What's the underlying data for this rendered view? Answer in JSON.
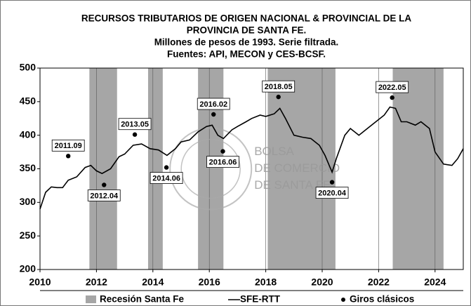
{
  "chart_data": {
    "type": "line",
    "title": [
      "RECURSOS TRIBUTARIOS DE ORIGEN NACIONAL & PROVINCIAL DE LA",
      "PROVINCIA DE SANTA FE."
    ],
    "subtitle": [
      "Millones de pesos de 1993. Serie filtrada.",
      "Fuentes: API, MECON y CES-BCSF."
    ],
    "watermark": [
      "BOLSA",
      "DE COMERCIO",
      "DE SANTA FE"
    ],
    "xlim": [
      2010,
      2025
    ],
    "ylim": [
      200,
      500
    ],
    "xticks": [
      2010,
      2012,
      2014,
      2016,
      2018,
      2020,
      2022,
      2024
    ],
    "yticks": [
      200,
      250,
      300,
      350,
      400,
      450,
      500
    ],
    "grid": true,
    "recessions": {
      "name": "Recesión Santa Fe",
      "color": "#a6a6a6",
      "ranges": [
        [
          2011.75,
          2012.73
        ],
        [
          2013.83,
          2014.35
        ],
        [
          2015.6,
          2016.5
        ],
        [
          2018.07,
          2020.47
        ],
        [
          2022.5,
          2024.3
        ]
      ]
    },
    "series": [
      {
        "name": "SFE-RTT",
        "color": "#000000",
        "x": [
          2010.0,
          2010.2,
          2010.4,
          2010.6,
          2010.8,
          2011.0,
          2011.3,
          2011.6,
          2011.8,
          2012.0,
          2012.2,
          2012.5,
          2012.8,
          2013.0,
          2013.3,
          2013.6,
          2013.9,
          2014.2,
          2014.5,
          2014.8,
          2015.0,
          2015.3,
          2015.6,
          2015.9,
          2016.1,
          2016.3,
          2016.5,
          2016.8,
          2017.0,
          2017.3,
          2017.5,
          2017.8,
          2018.0,
          2018.3,
          2018.5,
          2018.7,
          2019.0,
          2019.3,
          2019.6,
          2019.9,
          2020.1,
          2020.35,
          2020.5,
          2020.8,
          2021.0,
          2021.3,
          2021.6,
          2021.9,
          2022.2,
          2022.4,
          2022.6,
          2022.8,
          2023.0,
          2023.3,
          2023.5,
          2023.8,
          2024.0,
          2024.3,
          2024.6,
          2024.8,
          2025.0
        ],
        "values": [
          290,
          315,
          323,
          322,
          322,
          333,
          338,
          352,
          355,
          347,
          343,
          350,
          368,
          372,
          385,
          387,
          380,
          378,
          370,
          380,
          390,
          393,
          405,
          413,
          415,
          400,
          395,
          408,
          413,
          420,
          425,
          430,
          428,
          432,
          440,
          425,
          400,
          397,
          395,
          385,
          370,
          345,
          365,
          400,
          410,
          400,
          410,
          420,
          430,
          442,
          440,
          420,
          420,
          415,
          420,
          410,
          375,
          357,
          355,
          365,
          380
        ]
      },
      {
        "name": "Giros clásicos",
        "color": "#000000",
        "x": [
          2011.0,
          2012.27,
          2013.36,
          2014.48,
          2016.15,
          2016.48,
          2018.45,
          2020.35,
          2022.48
        ],
        "values": [
          369,
          326,
          401,
          352,
          431,
          376,
          457,
          330,
          456
        ],
        "labels": [
          "2011.09",
          "2012.04",
          "2013.05",
          "2014.06",
          "2016.02",
          "2016.06",
          "2018.05",
          "2020.04",
          "2022.05"
        ]
      }
    ]
  }
}
